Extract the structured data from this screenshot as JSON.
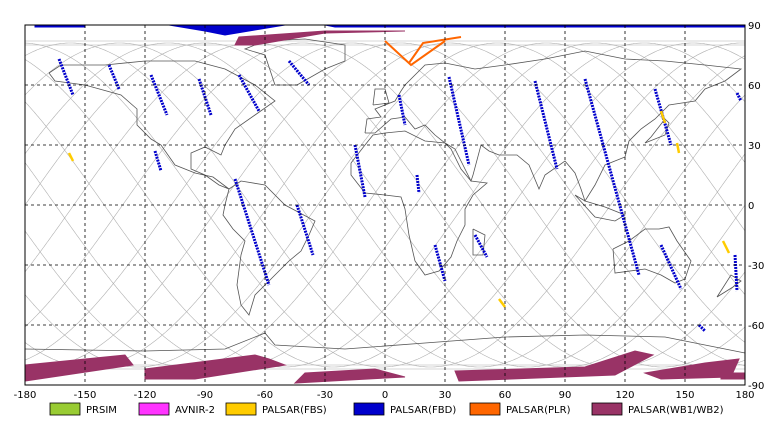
{
  "map": {
    "lon_ticks": [
      -180,
      -150,
      -120,
      -90,
      -60,
      -30,
      0,
      30,
      60,
      90,
      120,
      150,
      180
    ],
    "lat_ticks": [
      90,
      60,
      30,
      0,
      -30,
      -60,
      -90
    ],
    "lon_range": [
      -180,
      180
    ],
    "lat_range": [
      -90,
      90
    ],
    "grid": "dashed"
  },
  "colors": {
    "PRSIM": "#99cc33",
    "AVNIR-2": "#ff33ff",
    "PALSAR(FBS)": "#ffcc00",
    "PALSAR(FBD)": "#0000cc",
    "PALSAR(PLR)": "#ff6600",
    "PALSAR(WB1/WB2)": "#993366",
    "orbit": "#b0b0b0",
    "coast": "#555555"
  },
  "legend": [
    {
      "key": "PRSIM",
      "label": "PRSIM"
    },
    {
      "key": "AVNIR-2",
      "label": "AVNIR-2"
    },
    {
      "key": "PALSAR(FBS)",
      "label": "PALSAR(FBS)"
    },
    {
      "key": "PALSAR(FBD)",
      "label": "PALSAR(FBD)"
    },
    {
      "key": "PALSAR(PLR)",
      "label": "PALSAR(PLR)"
    },
    {
      "key": "PALSAR(WB1/WB2)",
      "label": "PALSAR(WB1/WB2)"
    }
  ],
  "fbd_tracks": [
    [
      [
        -163,
        73
      ],
      [
        -156,
        55
      ]
    ],
    [
      [
        -138,
        70
      ],
      [
        -133,
        58
      ]
    ],
    [
      [
        -117,
        65
      ],
      [
        -109,
        45
      ]
    ],
    [
      [
        -93,
        63
      ],
      [
        -87,
        45
      ]
    ],
    [
      [
        -73,
        65
      ],
      [
        -63,
        47
      ]
    ],
    [
      [
        -48,
        72
      ],
      [
        -38,
        60
      ]
    ],
    [
      [
        -115,
        27
      ],
      [
        -112,
        17
      ]
    ],
    [
      [
        -75,
        13
      ],
      [
        -58,
        -40
      ]
    ],
    [
      [
        -44,
        0
      ],
      [
        -36,
        -25
      ]
    ],
    [
      [
        -15,
        30
      ],
      [
        -10,
        4
      ]
    ],
    [
      [
        16,
        15
      ],
      [
        17,
        6
      ]
    ],
    [
      [
        7,
        55
      ],
      [
        10,
        40
      ]
    ],
    [
      [
        32,
        64
      ],
      [
        42,
        20
      ]
    ],
    [
      [
        25,
        -20
      ],
      [
        30,
        -38
      ]
    ],
    [
      [
        45,
        -15
      ],
      [
        51,
        -26
      ]
    ],
    [
      [
        75,
        62
      ],
      [
        86,
        18
      ]
    ],
    [
      [
        100,
        63
      ],
      [
        127,
        -35
      ]
    ],
    [
      [
        135,
        58
      ],
      [
        143,
        30
      ]
    ],
    [
      [
        138,
        -20
      ],
      [
        148,
        -42
      ]
    ],
    [
      [
        157,
        -60
      ],
      [
        160,
        -63
      ]
    ],
    [
      [
        175,
        -25
      ],
      [
        176,
        -43
      ]
    ],
    [
      [
        176,
        56
      ],
      [
        178,
        52
      ]
    ]
  ],
  "fbs_marks": [
    [
      [
        -158,
        26
      ],
      [
        -156,
        22
      ]
    ],
    [
      [
        138,
        47
      ],
      [
        140,
        41
      ]
    ],
    [
      [
        146,
        31
      ],
      [
        147,
        26
      ]
    ],
    [
      [
        169,
        -18
      ],
      [
        172,
        -24
      ]
    ],
    [
      [
        57,
        -47
      ],
      [
        60,
        -51
      ]
    ]
  ],
  "plr_lines": [
    [
      [
        0,
        82
      ],
      [
        13,
        70
      ],
      [
        30,
        82
      ]
    ],
    [
      [
        12,
        71
      ],
      [
        19,
        81
      ],
      [
        38,
        84
      ]
    ]
  ],
  "wb_bands": [
    [
      [
        -180,
        -80
      ],
      [
        -130,
        -75
      ],
      [
        -126,
        -80
      ],
      [
        -180,
        -88
      ]
    ],
    [
      [
        -120,
        -82
      ],
      [
        -65,
        -75
      ],
      [
        -58,
        -77
      ],
      [
        -50,
        -80
      ],
      [
        -95,
        -87
      ],
      [
        -120,
        -87
      ]
    ],
    [
      [
        -40,
        -84
      ],
      [
        -5,
        -82
      ],
      [
        10,
        -86
      ],
      [
        -45,
        -89
      ]
    ],
    [
      [
        35,
        -83
      ],
      [
        100,
        -81
      ],
      [
        125,
        -73
      ],
      [
        134,
        -75
      ],
      [
        115,
        -85
      ],
      [
        37,
        -88
      ]
    ],
    [
      [
        130,
        -84
      ],
      [
        160,
        -79
      ],
      [
        177,
        -77
      ],
      [
        173,
        -86
      ],
      [
        138,
        -87
      ]
    ],
    [
      [
        168,
        -84
      ],
      [
        180,
        -84
      ],
      [
        180,
        -87
      ],
      [
        168,
        -87
      ]
    ],
    [
      [
        -73,
        84
      ],
      [
        -30,
        87
      ],
      [
        10,
        87
      ],
      [
        -30,
        86
      ],
      [
        -65,
        80
      ],
      [
        -75,
        80
      ]
    ]
  ],
  "fbd_polar": [
    [
      [
        -108,
        90
      ],
      [
        -50,
        90
      ],
      [
        -62,
        88
      ],
      [
        -80,
        85
      ],
      [
        -90,
        87
      ]
    ],
    [
      [
        -30,
        90
      ],
      [
        120,
        90
      ],
      [
        120,
        89
      ],
      [
        -25,
        89
      ]
    ],
    [
      [
        120,
        90
      ],
      [
        180,
        90
      ],
      [
        180,
        89
      ],
      [
        150,
        89
      ],
      [
        120,
        89
      ]
    ],
    [
      [
        -175,
        90
      ],
      [
        -150,
        90
      ],
      [
        -150,
        89
      ],
      [
        -175,
        89
      ]
    ]
  ]
}
